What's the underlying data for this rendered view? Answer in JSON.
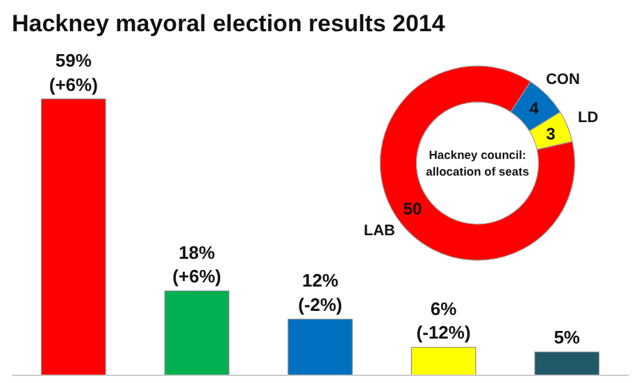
{
  "chart_data": [
    {
      "type": "bar",
      "title": "Hackney mayoral election results 2014",
      "categories": [
        null,
        null,
        null,
        null,
        null
      ],
      "values": [
        59,
        18,
        12,
        6,
        5
      ],
      "colors": [
        "#ff0000",
        "#00b050",
        "#0070c0",
        "#ffff00",
        "#215968"
      ],
      "value_labels": [
        "59%\n(+6%)",
        "18%\n(+6%)",
        "12%\n(-2%)",
        "6%\n(-12%)",
        "5%"
      ],
      "tick_labels": false,
      "grid": false
    },
    {
      "type": "donut",
      "title": "Hackney council:\nallocation of seats",
      "categories": [
        "CON",
        "LD",
        "LAB"
      ],
      "values": [
        4,
        3,
        50
      ],
      "colors": [
        "#0070c0",
        "#ffff00",
        "#ff0000"
      ],
      "data_labels": true
    }
  ]
}
